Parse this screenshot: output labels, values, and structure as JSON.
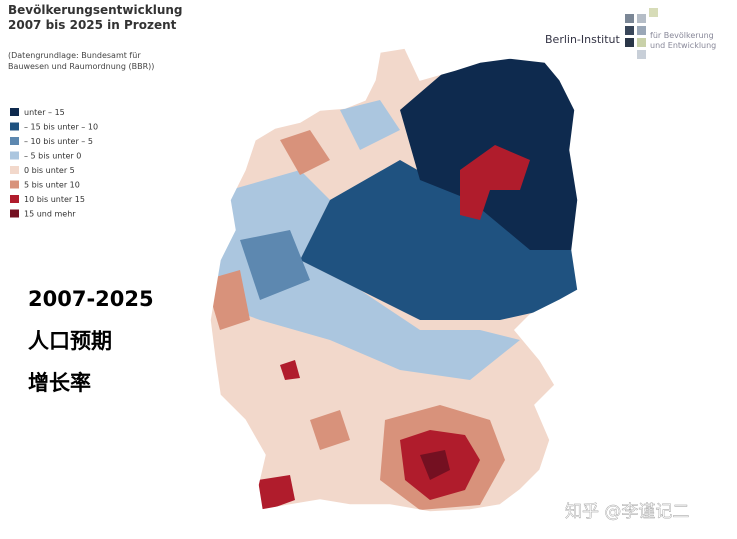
{
  "header": {
    "title_lines": [
      "Bevölkerungsentwicklung",
      "2007 bis 2025 in Prozent"
    ],
    "source_lines": [
      "(Datengrundlage: Bundesamt für",
      "Bauwesen und Raumordnung (BBR))"
    ]
  },
  "legend": {
    "items": [
      {
        "label": "unter – 15",
        "color": "#0e2a4e"
      },
      {
        "label": "– 15 bis unter – 10",
        "color": "#1f5280"
      },
      {
        "label": "– 10 bis unter – 5",
        "color": "#5d88b0"
      },
      {
        "label": "– 5 bis unter 0",
        "color": "#abc6df"
      },
      {
        "label": "0 bis unter 5",
        "color": "#f2d8cb"
      },
      {
        "label": "5 bis unter 10",
        "color": "#d8927b"
      },
      {
        "label": "10 bis unter 15",
        "color": "#b01c2c"
      },
      {
        "label": "15 und mehr",
        "color": "#741021"
      }
    ]
  },
  "logo": {
    "name": "Berlin-Institut",
    "tagline_lines": [
      "für Bevölkerung",
      "und Entwicklung"
    ]
  },
  "overlay": {
    "lines": [
      "2007-2025",
      "人口预期",
      "增长率"
    ]
  },
  "watermark": "知乎 @李谨记二"
}
